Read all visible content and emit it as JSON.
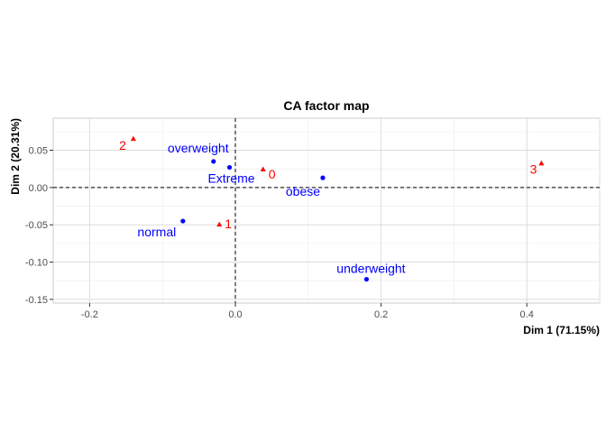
{
  "chart_data": {
    "type": "scatter",
    "title": "CA factor map",
    "xlabel": "Dim 1 (71.15%)",
    "ylabel": "Dim 2 (20.31%)",
    "xlim": [
      -0.25,
      0.5
    ],
    "ylim": [
      -0.155,
      0.093
    ],
    "x_ticks": [
      -0.2,
      0.0,
      0.2,
      0.4
    ],
    "x_tick_labels": [
      "-0.2",
      "0.0",
      "0.2",
      "0.4"
    ],
    "y_ticks": [
      -0.15,
      -0.1,
      -0.05,
      0.0,
      0.05
    ],
    "y_tick_labels": [
      "-0.15",
      "-0.10",
      "-0.05",
      "0.00",
      "0.05"
    ],
    "grid": true,
    "reference_lines": {
      "x": 0,
      "y": 0,
      "style": "dashed"
    },
    "series": [
      {
        "color": "#0000FF",
        "marker": "circle",
        "points": [
          {
            "label": "overweight",
            "x": -0.03,
            "y": 0.035
          },
          {
            "label": "Extreme",
            "x": -0.008,
            "y": 0.027
          },
          {
            "label": "obese",
            "x": 0.12,
            "y": 0.013
          },
          {
            "label": "normal",
            "x": -0.072,
            "y": -0.045
          },
          {
            "label": "underweight",
            "x": 0.18,
            "y": -0.123
          }
        ]
      },
      {
        "color": "#FF0000",
        "marker": "triangle",
        "points": [
          {
            "label": "2",
            "x": -0.14,
            "y": 0.065
          },
          {
            "label": "0",
            "x": 0.038,
            "y": 0.024
          },
          {
            "label": "1",
            "x": -0.022,
            "y": -0.05
          },
          {
            "label": "3",
            "x": 0.42,
            "y": 0.032
          }
        ]
      }
    ]
  }
}
